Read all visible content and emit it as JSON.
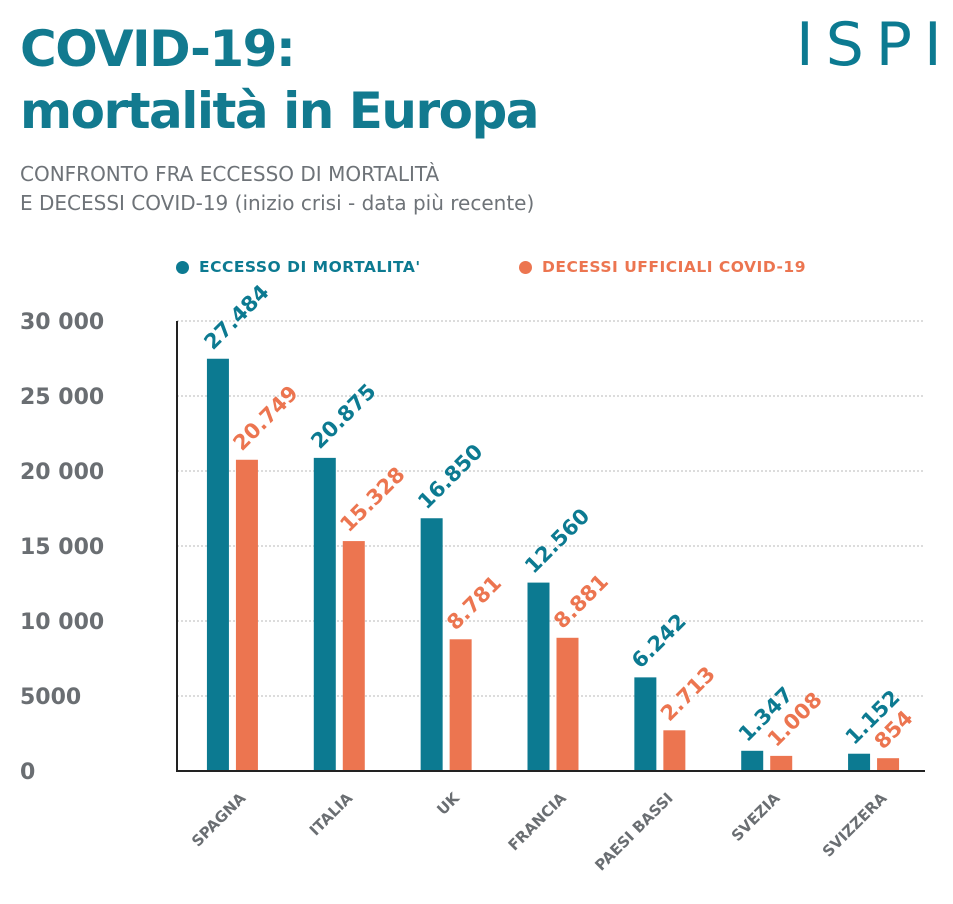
{
  "header": {
    "title_lines": [
      "COVID-19:",
      "mortalità in Europa"
    ],
    "subtitle_lines": [
      "CONFRONTO FRA ECCESSO DI MORTALITÀ",
      "E DECESSI COVID-19 (inizio crisi - data più recente)"
    ],
    "logo_text": "ISPI"
  },
  "colors": {
    "title": "#127a8f",
    "series_excess": "#0c7a91",
    "series_covid": "#ec7550",
    "subtitle": "#6e7378",
    "tick": "#6a6e72",
    "grid": "#b8b8b8",
    "axis": "#222222"
  },
  "chart_data": {
    "type": "bar",
    "categories": [
      "SPAGNA",
      "ITALIA",
      "UK",
      "FRANCIA",
      "PAESI BASSI",
      "SVEZIA",
      "SVIZZERA"
    ],
    "series": [
      {
        "name": "ECCESSO DI MORTALITA'",
        "values": [
          27484,
          20875,
          16850,
          12560,
          6242,
          1347,
          1152
        ],
        "labels": [
          "27.484",
          "20.875",
          "16.850",
          "12.560",
          "6.242",
          "1.347",
          "1.152"
        ]
      },
      {
        "name": "DECESSI UFFICIALI COVID-19",
        "values": [
          20749,
          15328,
          8781,
          8881,
          2713,
          1008,
          854
        ],
        "labels": [
          "20.749",
          "15.328",
          "8.781",
          "8.881",
          "2.713",
          "1.008",
          "854"
        ]
      }
    ],
    "ylim": [
      0,
      30000
    ],
    "yticks": [
      0,
      5000,
      10000,
      15000,
      20000,
      25000,
      30000
    ],
    "ytick_labels": [
      "0",
      "5000",
      "10 000",
      "15 000",
      "20 000",
      "25 000",
      "30 000"
    ],
    "grid": true,
    "legend_position": "top"
  }
}
